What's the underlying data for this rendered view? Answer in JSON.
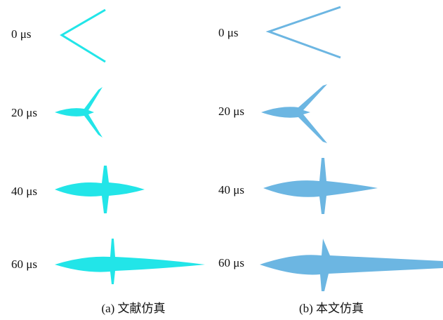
{
  "panels": [
    {
      "caption": "(a) 文献仿真",
      "rows": [
        "0 μs",
        "20 μs",
        "40 μs",
        "60 μs"
      ]
    },
    {
      "caption": "(b) 本文仿真",
      "rows": [
        "0 μs",
        "20 μs",
        "40 μs",
        "60 μs"
      ]
    }
  ]
}
